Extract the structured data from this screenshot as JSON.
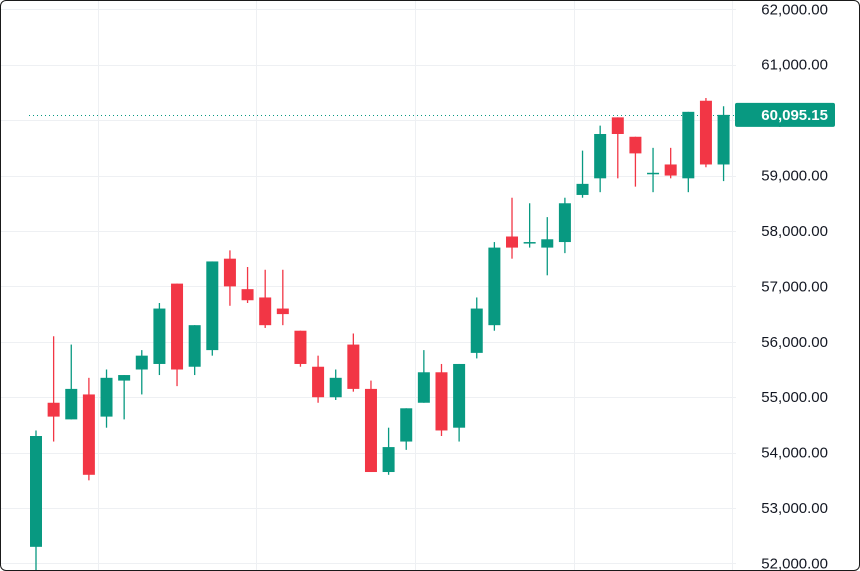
{
  "chart_data": {
    "type": "candlestick",
    "ylim": [
      51900,
      62150
    ],
    "y_ticks": [
      52000,
      53000,
      54000,
      55000,
      56000,
      57000,
      58000,
      59000,
      60000,
      61000,
      62000
    ],
    "y_tick_labels": [
      "52,000.00",
      "53,000.00",
      "54,000.00",
      "55,000.00",
      "56,000.00",
      "57,000.00",
      "58,000.00",
      "59,000.00",
      "60,000.00",
      "61,000.00",
      "62,000.00"
    ],
    "vertical_grid_at_candle": [
      3.5,
      12.5,
      21.5,
      30.5,
      39.5
    ],
    "grid": true,
    "colors": {
      "up": "#089981",
      "down": "#f23645",
      "grid": "#eef0f3",
      "last_price": "#089981"
    },
    "last_price": 60095.15,
    "last_price_label": "60,095.15",
    "candles": [
      {
        "o": 52300,
        "h": 54400,
        "l": 51850,
        "c": 54300
      },
      {
        "o": 54900,
        "h": 56100,
        "l": 54200,
        "c": 54650
      },
      {
        "o": 54600,
        "h": 55950,
        "l": 54600,
        "c": 55150
      },
      {
        "o": 55050,
        "h": 55350,
        "l": 53500,
        "c": 53600
      },
      {
        "o": 54650,
        "h": 55500,
        "l": 54450,
        "c": 55350
      },
      {
        "o": 55300,
        "h": 55400,
        "l": 54600,
        "c": 55400
      },
      {
        "o": 55500,
        "h": 55850,
        "l": 55050,
        "c": 55750
      },
      {
        "o": 55600,
        "h": 56700,
        "l": 55400,
        "c": 56600
      },
      {
        "o": 57050,
        "h": 57050,
        "l": 55200,
        "c": 55500
      },
      {
        "o": 55550,
        "h": 56300,
        "l": 55400,
        "c": 56300
      },
      {
        "o": 55850,
        "h": 57450,
        "l": 55750,
        "c": 57450
      },
      {
        "o": 57500,
        "h": 57650,
        "l": 56650,
        "c": 57000
      },
      {
        "o": 56950,
        "h": 57350,
        "l": 56700,
        "c": 56750
      },
      {
        "o": 56800,
        "h": 57300,
        "l": 56250,
        "c": 56300
      },
      {
        "o": 56600,
        "h": 57300,
        "l": 56300,
        "c": 56500
      },
      {
        "o": 56200,
        "h": 56200,
        "l": 55550,
        "c": 55600
      },
      {
        "o": 55550,
        "h": 55750,
        "l": 54900,
        "c": 55000
      },
      {
        "o": 55000,
        "h": 55500,
        "l": 54950,
        "c": 55350
      },
      {
        "o": 55950,
        "h": 56150,
        "l": 55100,
        "c": 55150
      },
      {
        "o": 55150,
        "h": 55300,
        "l": 53650,
        "c": 53650
      },
      {
        "o": 53650,
        "h": 54450,
        "l": 53600,
        "c": 54100
      },
      {
        "o": 54200,
        "h": 54800,
        "l": 54050,
        "c": 54800
      },
      {
        "o": 54900,
        "h": 55850,
        "l": 54900,
        "c": 55450
      },
      {
        "o": 55450,
        "h": 55600,
        "l": 54300,
        "c": 54400
      },
      {
        "o": 54450,
        "h": 55600,
        "l": 54200,
        "c": 55600
      },
      {
        "o": 55800,
        "h": 56800,
        "l": 55700,
        "c": 56600
      },
      {
        "o": 56300,
        "h": 57800,
        "l": 56200,
        "c": 57700
      },
      {
        "o": 57900,
        "h": 58600,
        "l": 57500,
        "c": 57700
      },
      {
        "o": 57800,
        "h": 58500,
        "l": 57700,
        "c": 57800
      },
      {
        "o": 57700,
        "h": 58250,
        "l": 57200,
        "c": 57850
      },
      {
        "o": 57800,
        "h": 58600,
        "l": 57600,
        "c": 58500
      },
      {
        "o": 58650,
        "h": 59450,
        "l": 58600,
        "c": 58850
      },
      {
        "o": 58950,
        "h": 59900,
        "l": 58700,
        "c": 59750
      },
      {
        "o": 60050,
        "h": 60050,
        "l": 58950,
        "c": 59750
      },
      {
        "o": 59700,
        "h": 59700,
        "l": 58800,
        "c": 59400
      },
      {
        "o": 59050,
        "h": 59500,
        "l": 58700,
        "c": 59050
      },
      {
        "o": 59200,
        "h": 59500,
        "l": 58950,
        "c": 59000
      },
      {
        "o": 58950,
        "h": 60150,
        "l": 58700,
        "c": 60150
      },
      {
        "o": 60350,
        "h": 60400,
        "l": 59150,
        "c": 59200
      },
      {
        "o": 59200,
        "h": 60250,
        "l": 58900,
        "c": 60095.15
      }
    ]
  }
}
